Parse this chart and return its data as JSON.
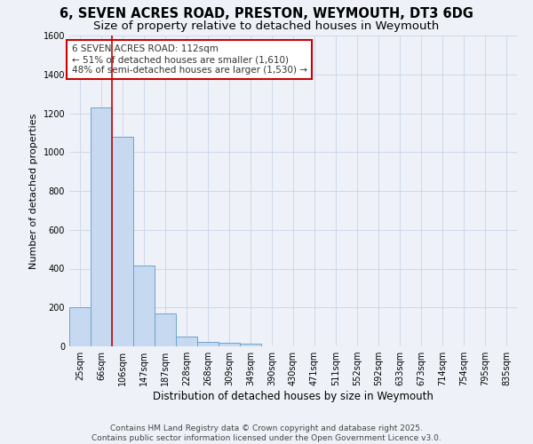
{
  "title": "6, SEVEN ACRES ROAD, PRESTON, WEYMOUTH, DT3 6DG",
  "subtitle": "Size of property relative to detached houses in Weymouth",
  "xlabel": "Distribution of detached houses by size in Weymouth",
  "ylabel": "Number of detached properties",
  "categories": [
    "25sqm",
    "66sqm",
    "106sqm",
    "147sqm",
    "187sqm",
    "228sqm",
    "268sqm",
    "309sqm",
    "349sqm",
    "390sqm",
    "430sqm",
    "471sqm",
    "511sqm",
    "552sqm",
    "592sqm",
    "633sqm",
    "673sqm",
    "714sqm",
    "754sqm",
    "795sqm",
    "835sqm"
  ],
  "values": [
    200,
    1230,
    1080,
    415,
    170,
    50,
    25,
    20,
    12,
    0,
    0,
    0,
    0,
    0,
    0,
    0,
    0,
    0,
    0,
    0,
    0
  ],
  "bar_color": "#c6d9f0",
  "bar_edgecolor": "#6ba3d0",
  "red_line_x": 2,
  "annotation_box_text": "6 SEVEN ACRES ROAD: 112sqm\n← 51% of detached houses are smaller (1,610)\n48% of semi-detached houses are larger (1,530) →",
  "annotation_box_color": "#ffffff",
  "annotation_box_edgecolor": "#cc0000",
  "annotation_text_color": "#333333",
  "red_line_color": "#cc0000",
  "grid_color": "#c8d4e8",
  "background_color": "#eef2f8",
  "footer_text": "Contains HM Land Registry data © Crown copyright and database right 2025.\nContains public sector information licensed under the Open Government Licence v3.0.",
  "ylim": [
    0,
    1600
  ],
  "yticks": [
    0,
    200,
    400,
    600,
    800,
    1000,
    1200,
    1400,
    1600
  ],
  "title_fontsize": 10.5,
  "subtitle_fontsize": 9.5,
  "xlabel_fontsize": 8.5,
  "ylabel_fontsize": 8,
  "tick_fontsize": 7,
  "annotation_fontsize": 7.5,
  "footer_fontsize": 6.5
}
